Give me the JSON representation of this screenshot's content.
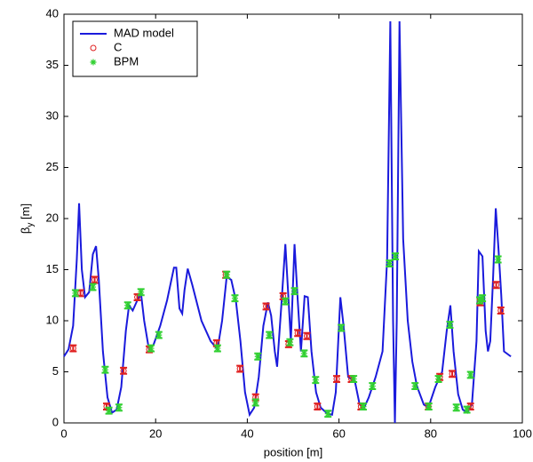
{
  "chart_data": {
    "type": "line",
    "xlabel": "position [m]",
    "ylabel": [
      "β",
      "y",
      " [m]"
    ],
    "xlim": [
      0,
      100
    ],
    "ylim": [
      0,
      40
    ],
    "xticks": [
      0,
      20,
      40,
      60,
      80,
      100
    ],
    "yticks": [
      0,
      5,
      10,
      15,
      20,
      25,
      30,
      35,
      40
    ],
    "grid": false,
    "legend": "upper left",
    "series": [
      {
        "name": "MAD model",
        "color": "#1a1adc",
        "marker": "none",
        "x": [
          0,
          1,
          2,
          2.8,
          3.3,
          3.9,
          4.6,
          5.5,
          6.3,
          7,
          7.6,
          8.5,
          9.5,
          10.5,
          11.5,
          12.5,
          13.5,
          14.2,
          15,
          16,
          16.8,
          17.5,
          18.5,
          19.5,
          21,
          22.5,
          24,
          24.5,
          25.2,
          25.8,
          26.3,
          27,
          28,
          30,
          32,
          33.5,
          34.5,
          35.5,
          36.5,
          37.5,
          38.5,
          39.5,
          40.5,
          41.5,
          42.5,
          43.5,
          44.5,
          45.2,
          46,
          46.5,
          47.5,
          48.3,
          49,
          49.5,
          50.3,
          51,
          51.7,
          52.5,
          53.2,
          54,
          55,
          56,
          57.5,
          58.5,
          59.3,
          60.3,
          61,
          62,
          63.5,
          64.5,
          65.5,
          66.5,
          68,
          69.5,
          70.5,
          71.2,
          71.8,
          72.2,
          72.6,
          73.2,
          74,
          75,
          76,
          77,
          78.5,
          79.5,
          81,
          82.5,
          83.5,
          84.3,
          85,
          86,
          87,
          88,
          89,
          90,
          90.5,
          91.3,
          92,
          92.5,
          93,
          93.6,
          94.2,
          94.8,
          95.4,
          96,
          97.5
        ],
        "values": [
          6.5,
          7.2,
          9.5,
          16,
          21.5,
          15,
          12.3,
          12.8,
          16.5,
          17.3,
          14,
          7,
          2.5,
          1,
          1.3,
          3.5,
          9,
          11.5,
          11,
          12,
          12.7,
          10,
          7.3,
          7.6,
          9.5,
          12,
          15.2,
          15.2,
          11.2,
          10.7,
          13,
          15.1,
          13.5,
          10,
          8,
          7.2,
          10,
          14.3,
          14,
          12,
          8,
          3,
          0.8,
          1.5,
          4.5,
          9.5,
          11.8,
          10.5,
          7,
          5.5,
          12,
          17.5,
          12,
          8,
          17.5,
          12,
          7,
          12.4,
          12.3,
          7,
          3,
          1.5,
          0.9,
          0.8,
          3,
          12.3,
          9.5,
          4.5,
          4,
          1.8,
          1.5,
          2.5,
          4.5,
          7,
          16,
          39.3,
          10,
          0,
          10,
          39.3,
          18,
          10,
          6,
          3.6,
          1.8,
          1.5,
          3.5,
          5,
          9,
          11.5,
          7,
          2.8,
          1.3,
          1,
          1.8,
          8,
          16.8,
          16.3,
          9,
          7,
          8,
          14,
          21,
          17,
          12.5,
          7,
          6.5
        ]
      },
      {
        "name": "C",
        "color": "#e02020",
        "marker": "o",
        "x": [
          2,
          3.6,
          6.7,
          9.3,
          13,
          16,
          18.6,
          33.3,
          35.3,
          38.4,
          41.8,
          44.1,
          47.8,
          49,
          51,
          53,
          55.3,
          59.5,
          62.7,
          64.8,
          79.5,
          82,
          84.7,
          88.7,
          90.8,
          94.3,
          95.3
        ],
        "values": [
          7.3,
          12.7,
          14,
          1.6,
          5.1,
          12.3,
          7.2,
          7.8,
          14.5,
          5.3,
          2.5,
          11.4,
          12.4,
          7.7,
          8.8,
          8.5,
          1.6,
          4.3,
          4.3,
          1.6,
          1.6,
          4.5,
          4.8,
          1.6,
          11.8,
          13.5,
          11
        ],
        "errors": [
          0.3,
          0.3,
          0.3,
          0.3,
          0.3,
          0.3,
          0.3,
          0.3,
          0.3,
          0.3,
          0.3,
          0.3,
          0.3,
          0.3,
          0.3,
          0.3,
          0.3,
          0.3,
          0.3,
          0.3,
          0.3,
          0.3,
          0.3,
          0.3,
          0.3,
          0.3,
          0.3
        ]
      },
      {
        "name": "BPM",
        "color": "#30d030",
        "marker": "*",
        "x": [
          2.5,
          6.3,
          9,
          9.8,
          12,
          13.9,
          16.8,
          19,
          20.7,
          33.5,
          35.5,
          37.3,
          41.8,
          42.3,
          44.8,
          48.3,
          49.3,
          50.3,
          52.4,
          54.9,
          57.6,
          60.5,
          63.2,
          65.3,
          67.3,
          71,
          72.3,
          76.6,
          79.6,
          81.7,
          84.2,
          85.6,
          87.9,
          88.7,
          90.7,
          91.3,
          94.7
        ],
        "values": [
          12.7,
          13.3,
          5.2,
          1.2,
          1.5,
          11.5,
          12.8,
          7.3,
          8.6,
          7.3,
          14.5,
          12.2,
          2,
          6.5,
          8.6,
          11.9,
          7.9,
          12.9,
          6.8,
          4.2,
          0.9,
          9.3,
          4.3,
          1.6,
          3.6,
          15.6,
          16.3,
          3.6,
          1.6,
          4.3,
          9.6,
          1.5,
          1.3,
          4.7,
          12,
          12.2,
          16
        ],
        "errors": [
          0.3,
          0.3,
          0.3,
          0.3,
          0.3,
          0.3,
          0.3,
          0.3,
          0.3,
          0.3,
          0.3,
          0.3,
          0.3,
          0.3,
          0.3,
          0.3,
          0.3,
          0.3,
          0.3,
          0.3,
          0.3,
          0.3,
          0.3,
          0.3,
          0.3,
          0.3,
          0.3,
          0.3,
          0.3,
          0.3,
          0.3,
          0.3,
          0.3,
          0.3,
          0.3,
          0.3,
          0.3
        ]
      }
    ]
  }
}
